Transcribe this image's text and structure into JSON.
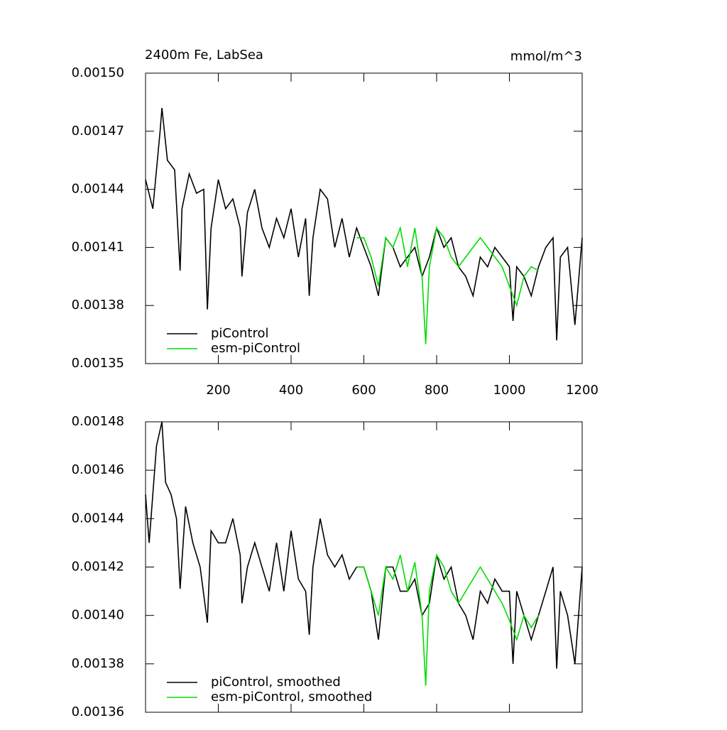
{
  "chart_data": [
    {
      "type": "line",
      "title": "2400m Fe, LabSea",
      "units": "mmol/m^3",
      "xlim": [
        0,
        1200
      ],
      "xticks": [
        200,
        400,
        600,
        800,
        1000,
        1200
      ],
      "show_xtick_labels": true,
      "ylim": [
        0.00135,
        0.0015
      ],
      "yticks": [
        0.00135,
        0.00138,
        0.00141,
        0.00144,
        0.00147,
        {
          "value": 0.0015,
          "label": "0.00150"
        }
      ],
      "legend": "lower left",
      "series": [
        {
          "name": "piControl",
          "color": "#000000",
          "x": [
            0,
            20,
            40,
            45,
            60,
            80,
            95,
            100,
            120,
            140,
            160,
            170,
            180,
            200,
            220,
            240,
            260,
            265,
            280,
            300,
            320,
            340,
            360,
            380,
            400,
            420,
            440,
            450,
            460,
            480,
            500,
            520,
            540,
            560,
            580,
            600,
            620,
            640,
            660,
            680,
            700,
            720,
            740,
            760,
            780,
            800,
            820,
            840,
            860,
            880,
            900,
            920,
            940,
            960,
            980,
            1000,
            1010,
            1020,
            1040,
            1060,
            1080,
            1100,
            1120,
            1130,
            1140,
            1160,
            1180,
            1200
          ],
          "values": [
            0.001445,
            0.00143,
            0.00147,
            0.001482,
            0.001455,
            0.00145,
            0.001398,
            0.00143,
            0.001448,
            0.001438,
            0.00144,
            0.001378,
            0.00142,
            0.001445,
            0.00143,
            0.001435,
            0.00142,
            0.001395,
            0.001428,
            0.00144,
            0.00142,
            0.00141,
            0.001425,
            0.001415,
            0.00143,
            0.001405,
            0.001425,
            0.001385,
            0.001415,
            0.00144,
            0.001435,
            0.00141,
            0.001425,
            0.001405,
            0.00142,
            0.00141,
            0.0014,
            0.001385,
            0.001415,
            0.00141,
            0.0014,
            0.001405,
            0.00141,
            0.001395,
            0.001405,
            0.00142,
            0.00141,
            0.001415,
            0.0014,
            0.001395,
            0.001385,
            0.001405,
            0.0014,
            0.00141,
            0.001405,
            0.0014,
            0.001372,
            0.0014,
            0.001395,
            0.001385,
            0.0014,
            0.00141,
            0.001415,
            0.001362,
            0.001405,
            0.00141,
            0.00137,
            0.001415
          ]
        },
        {
          "name": "esm-piControl",
          "color": "#00dd00",
          "x": [
            580,
            600,
            620,
            640,
            660,
            680,
            700,
            720,
            740,
            760,
            770,
            780,
            800,
            820,
            840,
            860,
            880,
            900,
            920,
            940,
            960,
            980,
            1000,
            1020,
            1040,
            1060,
            1080
          ],
          "values": [
            0.001415,
            0.001415,
            0.001405,
            0.00139,
            0.001415,
            0.00141,
            0.00142,
            0.0014,
            0.00142,
            0.001395,
            0.00136,
            0.0014,
            0.00142,
            0.001415,
            0.001405,
            0.0014,
            0.001405,
            0.00141,
            0.001415,
            0.00141,
            0.001405,
            0.0014,
            0.00139,
            0.00138,
            0.001395,
            0.0014,
            0.001398
          ]
        }
      ]
    },
    {
      "type": "line",
      "xlim": [
        0,
        1200
      ],
      "xticks": [
        200,
        400,
        600,
        800,
        1000,
        1200
      ],
      "show_xtick_labels": false,
      "ylim": [
        0.00136,
        0.00148
      ],
      "yticks": [
        0.00136,
        0.00138,
        {
          "value": 0.0014,
          "label": "0.00140"
        },
        0.00142,
        0.00144,
        0.00146,
        0.00148
      ],
      "legend": "lower left",
      "series": [
        {
          "name": "piControl, smoothed",
          "color": "#000000",
          "x": [
            0,
            10,
            30,
            45,
            55,
            70,
            85,
            95,
            110,
            130,
            150,
            170,
            180,
            200,
            220,
            240,
            260,
            265,
            280,
            300,
            320,
            340,
            360,
            380,
            400,
            420,
            440,
            450,
            460,
            480,
            500,
            520,
            540,
            560,
            580,
            600,
            620,
            640,
            660,
            680,
            700,
            720,
            740,
            760,
            780,
            800,
            820,
            840,
            860,
            880,
            900,
            920,
            940,
            960,
            980,
            1000,
            1010,
            1020,
            1040,
            1060,
            1080,
            1100,
            1120,
            1130,
            1140,
            1160,
            1180,
            1200
          ],
          "values": [
            0.00145,
            0.00143,
            0.00147,
            0.00148,
            0.001455,
            0.00145,
            0.00144,
            0.001411,
            0.001445,
            0.00143,
            0.00142,
            0.001397,
            0.001435,
            0.00143,
            0.00143,
            0.00144,
            0.001425,
            0.001405,
            0.00142,
            0.00143,
            0.00142,
            0.00141,
            0.00143,
            0.00141,
            0.001435,
            0.001415,
            0.00141,
            0.001392,
            0.00142,
            0.00144,
            0.001425,
            0.00142,
            0.001425,
            0.001415,
            0.00142,
            0.00142,
            0.00141,
            0.00139,
            0.00142,
            0.00142,
            0.00141,
            0.00141,
            0.001415,
            0.0014,
            0.001405,
            0.001425,
            0.001415,
            0.00142,
            0.001405,
            0.0014,
            0.00139,
            0.00141,
            0.001405,
            0.001415,
            0.00141,
            0.00141,
            0.00138,
            0.00141,
            0.0014,
            0.00139,
            0.0014,
            0.00141,
            0.00142,
            0.001378,
            0.00141,
            0.0014,
            0.00138,
            0.00142
          ]
        },
        {
          "name": "esm-piControl, smoothed",
          "color": "#00dd00",
          "x": [
            580,
            600,
            620,
            640,
            660,
            680,
            700,
            720,
            740,
            760,
            770,
            780,
            800,
            820,
            840,
            860,
            880,
            900,
            920,
            940,
            960,
            980,
            1000,
            1020,
            1040,
            1060,
            1080
          ],
          "values": [
            0.00142,
            0.00142,
            0.00141,
            0.0014,
            0.00142,
            0.001415,
            0.001425,
            0.00141,
            0.001422,
            0.0014,
            0.001371,
            0.00141,
            0.001425,
            0.00142,
            0.00141,
            0.001405,
            0.00141,
            0.001415,
            0.00142,
            0.001415,
            0.00141,
            0.001405,
            0.001398,
            0.00139,
            0.0014,
            0.001395,
            0.0014
          ]
        }
      ]
    }
  ]
}
